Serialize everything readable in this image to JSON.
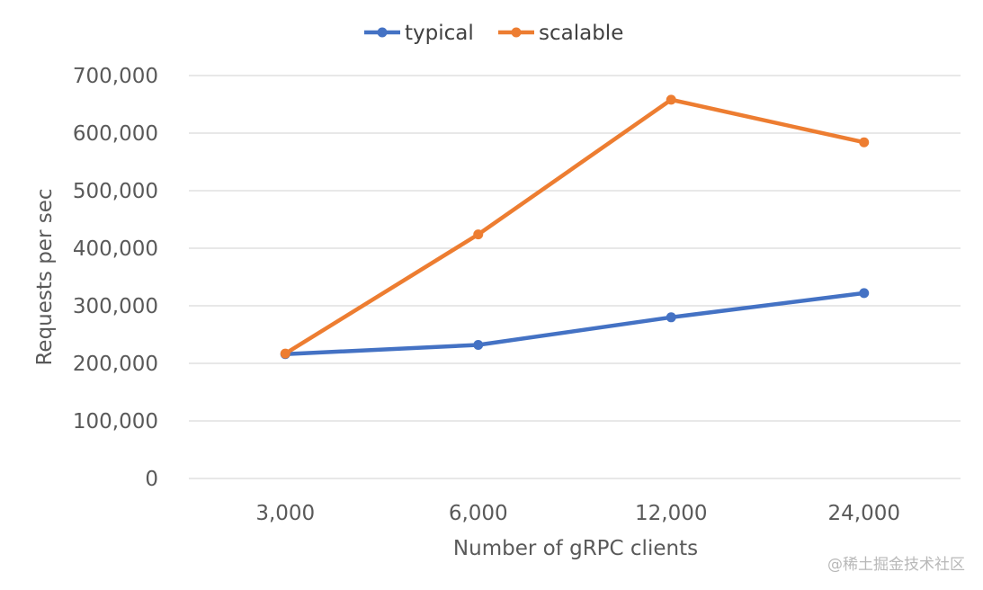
{
  "chart_data": {
    "type": "line",
    "categories": [
      "3,000",
      "6,000",
      "12,000",
      "24,000"
    ],
    "series": [
      {
        "name": "typical",
        "color": "#4472c4",
        "values": [
          216000,
          232000,
          280000,
          322000
        ]
      },
      {
        "name": "scalable",
        "color": "#ed7d31",
        "values": [
          217000,
          424000,
          658000,
          584000
        ]
      }
    ],
    "xlabel": "Number of gRPC clients",
    "ylabel": "Requests per sec",
    "ylim": [
      0,
      700000
    ],
    "yticks": [
      0,
      100000,
      200000,
      300000,
      400000,
      500000,
      600000,
      700000
    ],
    "ytick_labels": [
      "0",
      "100,000",
      "200,000",
      "300,000",
      "400,000",
      "500,000",
      "600,000",
      "700,000"
    ],
    "grid": "horizontal",
    "legend_position": "top"
  },
  "watermark": "@稀土掘金技术社区",
  "colors": {
    "grid": "#d9d9d9",
    "text": "#595959"
  }
}
